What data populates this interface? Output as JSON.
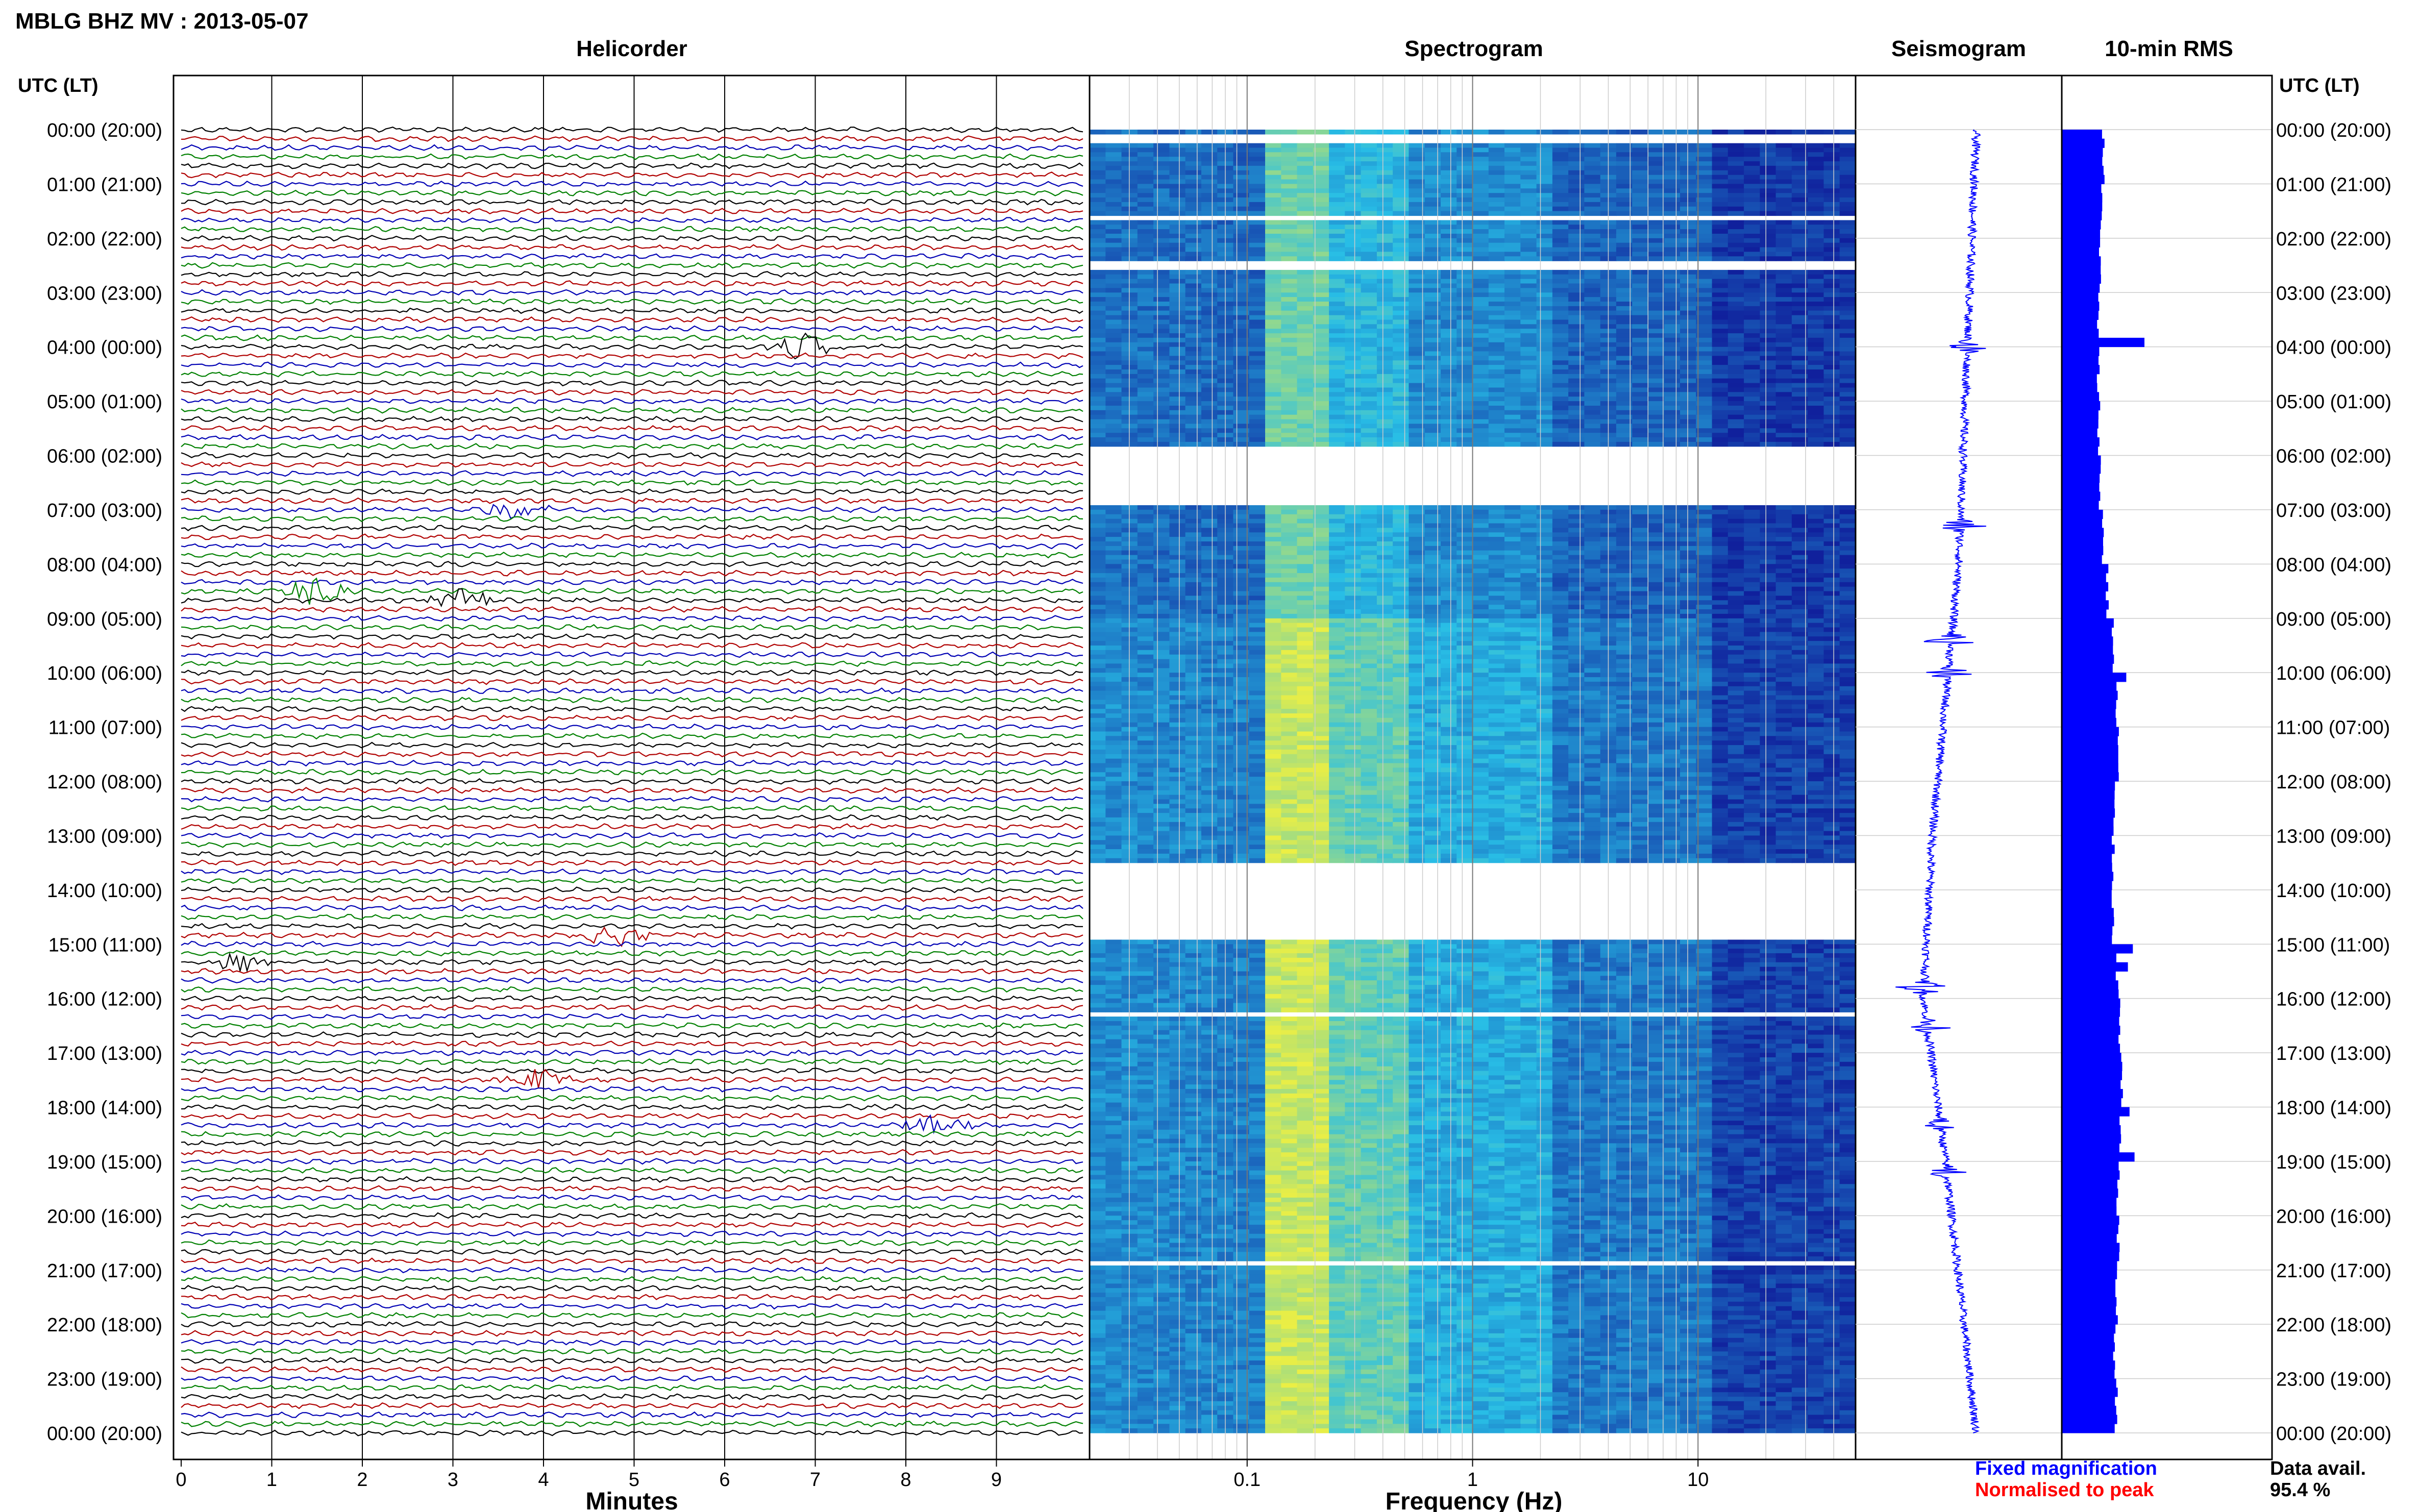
{
  "header": {
    "title": "MBLG BHZ MV : 2013-05-07",
    "utc_label_left": "UTC (LT)",
    "utc_label_right": "UTC (LT)"
  },
  "panels": {
    "helicorder_title": "Helicorder",
    "spectrogram_title": "Spectrogram",
    "seismogram_title": "Seismogram",
    "rms_title": "10-min RMS"
  },
  "axes": {
    "minutes_label": "Minutes",
    "frequency_label": "Frequency (Hz)",
    "minute_ticks": [
      "0",
      "1",
      "2",
      "3",
      "4",
      "5",
      "6",
      "7",
      "8",
      "9"
    ],
    "frequency_ticks": [
      "0.1",
      "1",
      "10"
    ],
    "frequency_range_hz": [
      0.02,
      50
    ],
    "frequency_scale": "log"
  },
  "legend": {
    "fixed_magnification": "Fixed magnification",
    "normalised_to_peak": "Normalised to peak",
    "fixed_color": "#0000ff",
    "normalised_color": "#ff0000"
  },
  "data_availability": {
    "label": "Data avail.",
    "value": "95.4 %"
  },
  "colors": {
    "trace_palette": [
      "#000000",
      "#b00000",
      "#0000b4",
      "#008000"
    ],
    "spectrogram_low": "#10209c",
    "spectrogram_high": "#f0f040",
    "seismogram": "#0000ff",
    "rms_bars": "#0000ff"
  },
  "chart_data": {
    "type": "heatmap",
    "time_labels": [
      "00:00 (20:00)",
      "01:00 (21:00)",
      "02:00 (22:00)",
      "03:00 (23:00)",
      "04:00 (00:00)",
      "05:00 (01:00)",
      "06:00 (02:00)",
      "07:00 (03:00)",
      "08:00 (04:00)",
      "09:00 (05:00)",
      "10:00 (06:00)",
      "11:00 (07:00)",
      "12:00 (08:00)",
      "13:00 (09:00)",
      "14:00 (10:00)",
      "15:00 (11:00)",
      "16:00 (12:00)",
      "17:00 (13:00)",
      "18:00 (14:00)",
      "19:00 (15:00)",
      "20:00 (16:00)",
      "21:00 (17:00)",
      "22:00 (18:00)",
      "23:00 (19:00)",
      "00:00 (20:00)"
    ],
    "helicorder": {
      "lines_per_hour": 6,
      "minutes_per_line": 10,
      "events": [
        {
          "line": 24,
          "minute": 6.9,
          "amp": 1.6
        },
        {
          "line": 42,
          "minute": 3.7,
          "amp": 1.2
        },
        {
          "line": 51,
          "minute": 1.5,
          "amp": 1.8
        },
        {
          "line": 52,
          "minute": 3.1,
          "amp": 1.3
        },
        {
          "line": 89,
          "minute": 4.8,
          "amp": 1.3
        },
        {
          "line": 92,
          "minute": 0.6,
          "amp": 1.0
        },
        {
          "line": 105,
          "minute": 3.9,
          "amp": 1.4
        },
        {
          "line": 110,
          "minute": 8.3,
          "amp": 1.5
        }
      ]
    },
    "spectrogram_gaps_hours": [
      [
        0.05,
        0.18
      ],
      [
        1.55,
        1.65
      ],
      [
        2.35,
        2.55
      ],
      [
        5.8,
        6.9
      ],
      [
        13.5,
        14.9
      ],
      [
        16.2,
        16.3
      ],
      [
        20.8,
        20.9
      ]
    ],
    "seismogram_offset": [
      {
        "hour": 0,
        "offset": 0.2
      },
      {
        "hour": 4,
        "offset": 0.1
      },
      {
        "hour": 8,
        "offset": 0.0
      },
      {
        "hour": 13,
        "offset": -0.3
      },
      {
        "hour": 16,
        "offset": -0.4
      },
      {
        "hour": 19,
        "offset": -0.15
      },
      {
        "hour": 24,
        "offset": 0.2
      }
    ],
    "seismogram_bursts_hours": [
      4.0,
      7.3,
      9.4,
      10.0,
      15.8,
      16.5,
      18.3,
      19.2
    ],
    "rms_10min": {
      "bins_per_hour": 6,
      "baseline_hourly": [
        0.5,
        0.48,
        0.46,
        0.44,
        0.44,
        0.45,
        0.46,
        0.5,
        0.55,
        0.62,
        0.66,
        0.68,
        0.63,
        0.62,
        0.62,
        0.67,
        0.7,
        0.72,
        0.7,
        0.68,
        0.68,
        0.66,
        0.64,
        0.66
      ],
      "spikes": [
        {
          "bin": 23,
          "value": 1.0
        },
        {
          "bin": 60,
          "value": 0.78
        },
        {
          "bin": 90,
          "value": 0.86
        },
        {
          "bin": 92,
          "value": 0.8
        },
        {
          "bin": 108,
          "value": 0.82
        },
        {
          "bin": 113,
          "value": 0.88
        }
      ]
    }
  }
}
